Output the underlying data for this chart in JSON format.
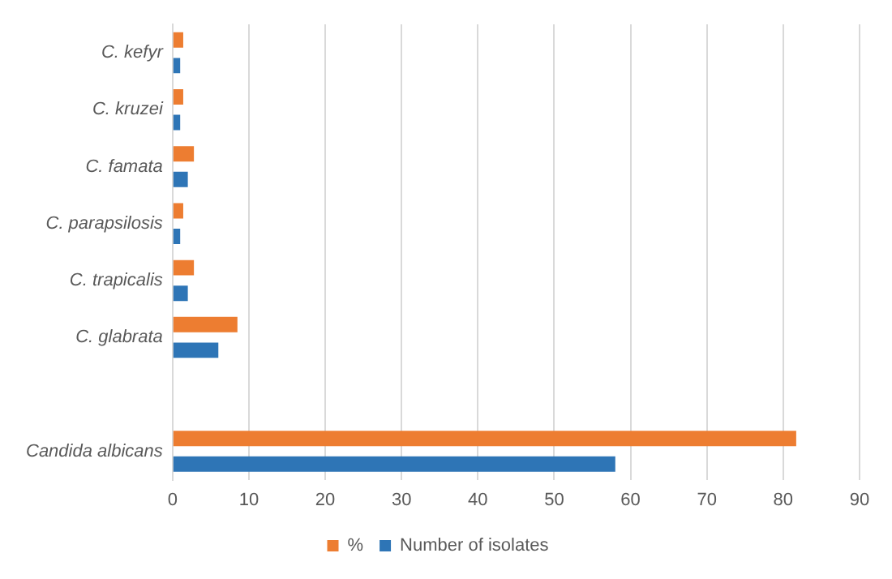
{
  "chart_data": {
    "type": "bar",
    "orientation": "horizontal",
    "categories": [
      "C. kefyr",
      "C. kruzei",
      "C. famata",
      "C. parapsilosis",
      "C. trapicalis",
      "C. glabrata",
      null,
      "Candida albicans"
    ],
    "series": [
      {
        "name": "%",
        "color": "#ed7d31",
        "values": [
          1.4,
          1.4,
          2.8,
          1.4,
          2.8,
          8.5,
          null,
          81.7
        ]
      },
      {
        "name": "Number of isolates",
        "color": "#2e75b6",
        "values": [
          1,
          1,
          2,
          1,
          2,
          6,
          null,
          58
        ]
      }
    ],
    "xlim": [
      0,
      90
    ],
    "xticks": [
      0,
      10,
      20,
      30,
      40,
      50,
      60,
      70,
      80,
      90
    ],
    "grid": "x",
    "legend": "bottom"
  }
}
